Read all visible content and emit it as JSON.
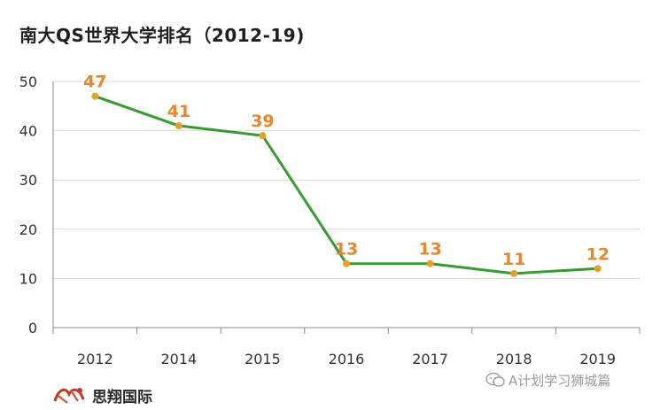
{
  "chart_data": {
    "type": "line",
    "title": "南大QS世界大学排名（2012-19)",
    "categories": [
      "2012",
      "2014",
      "2015",
      "2016",
      "2017",
      "2018",
      "2019"
    ],
    "series": [
      {
        "values": [
          47,
          41,
          39,
          13,
          13,
          11,
          12
        ]
      }
    ],
    "ylim": [
      0,
      50
    ],
    "yticks": [
      0,
      10,
      20,
      30,
      40,
      50
    ],
    "grid": true,
    "legend": "none",
    "colors": {
      "line": "#3a9a32",
      "marker": "#e3a22a",
      "label": "#e8862b",
      "grid": "#d9d9d9",
      "axis": "#8c8c8c"
    }
  },
  "brand": {
    "name": "思翔国际",
    "logo_icon": "stamp-logo-icon"
  },
  "watermark": {
    "text": "A计划学习狮城篇",
    "icon": "wechat-icon"
  }
}
